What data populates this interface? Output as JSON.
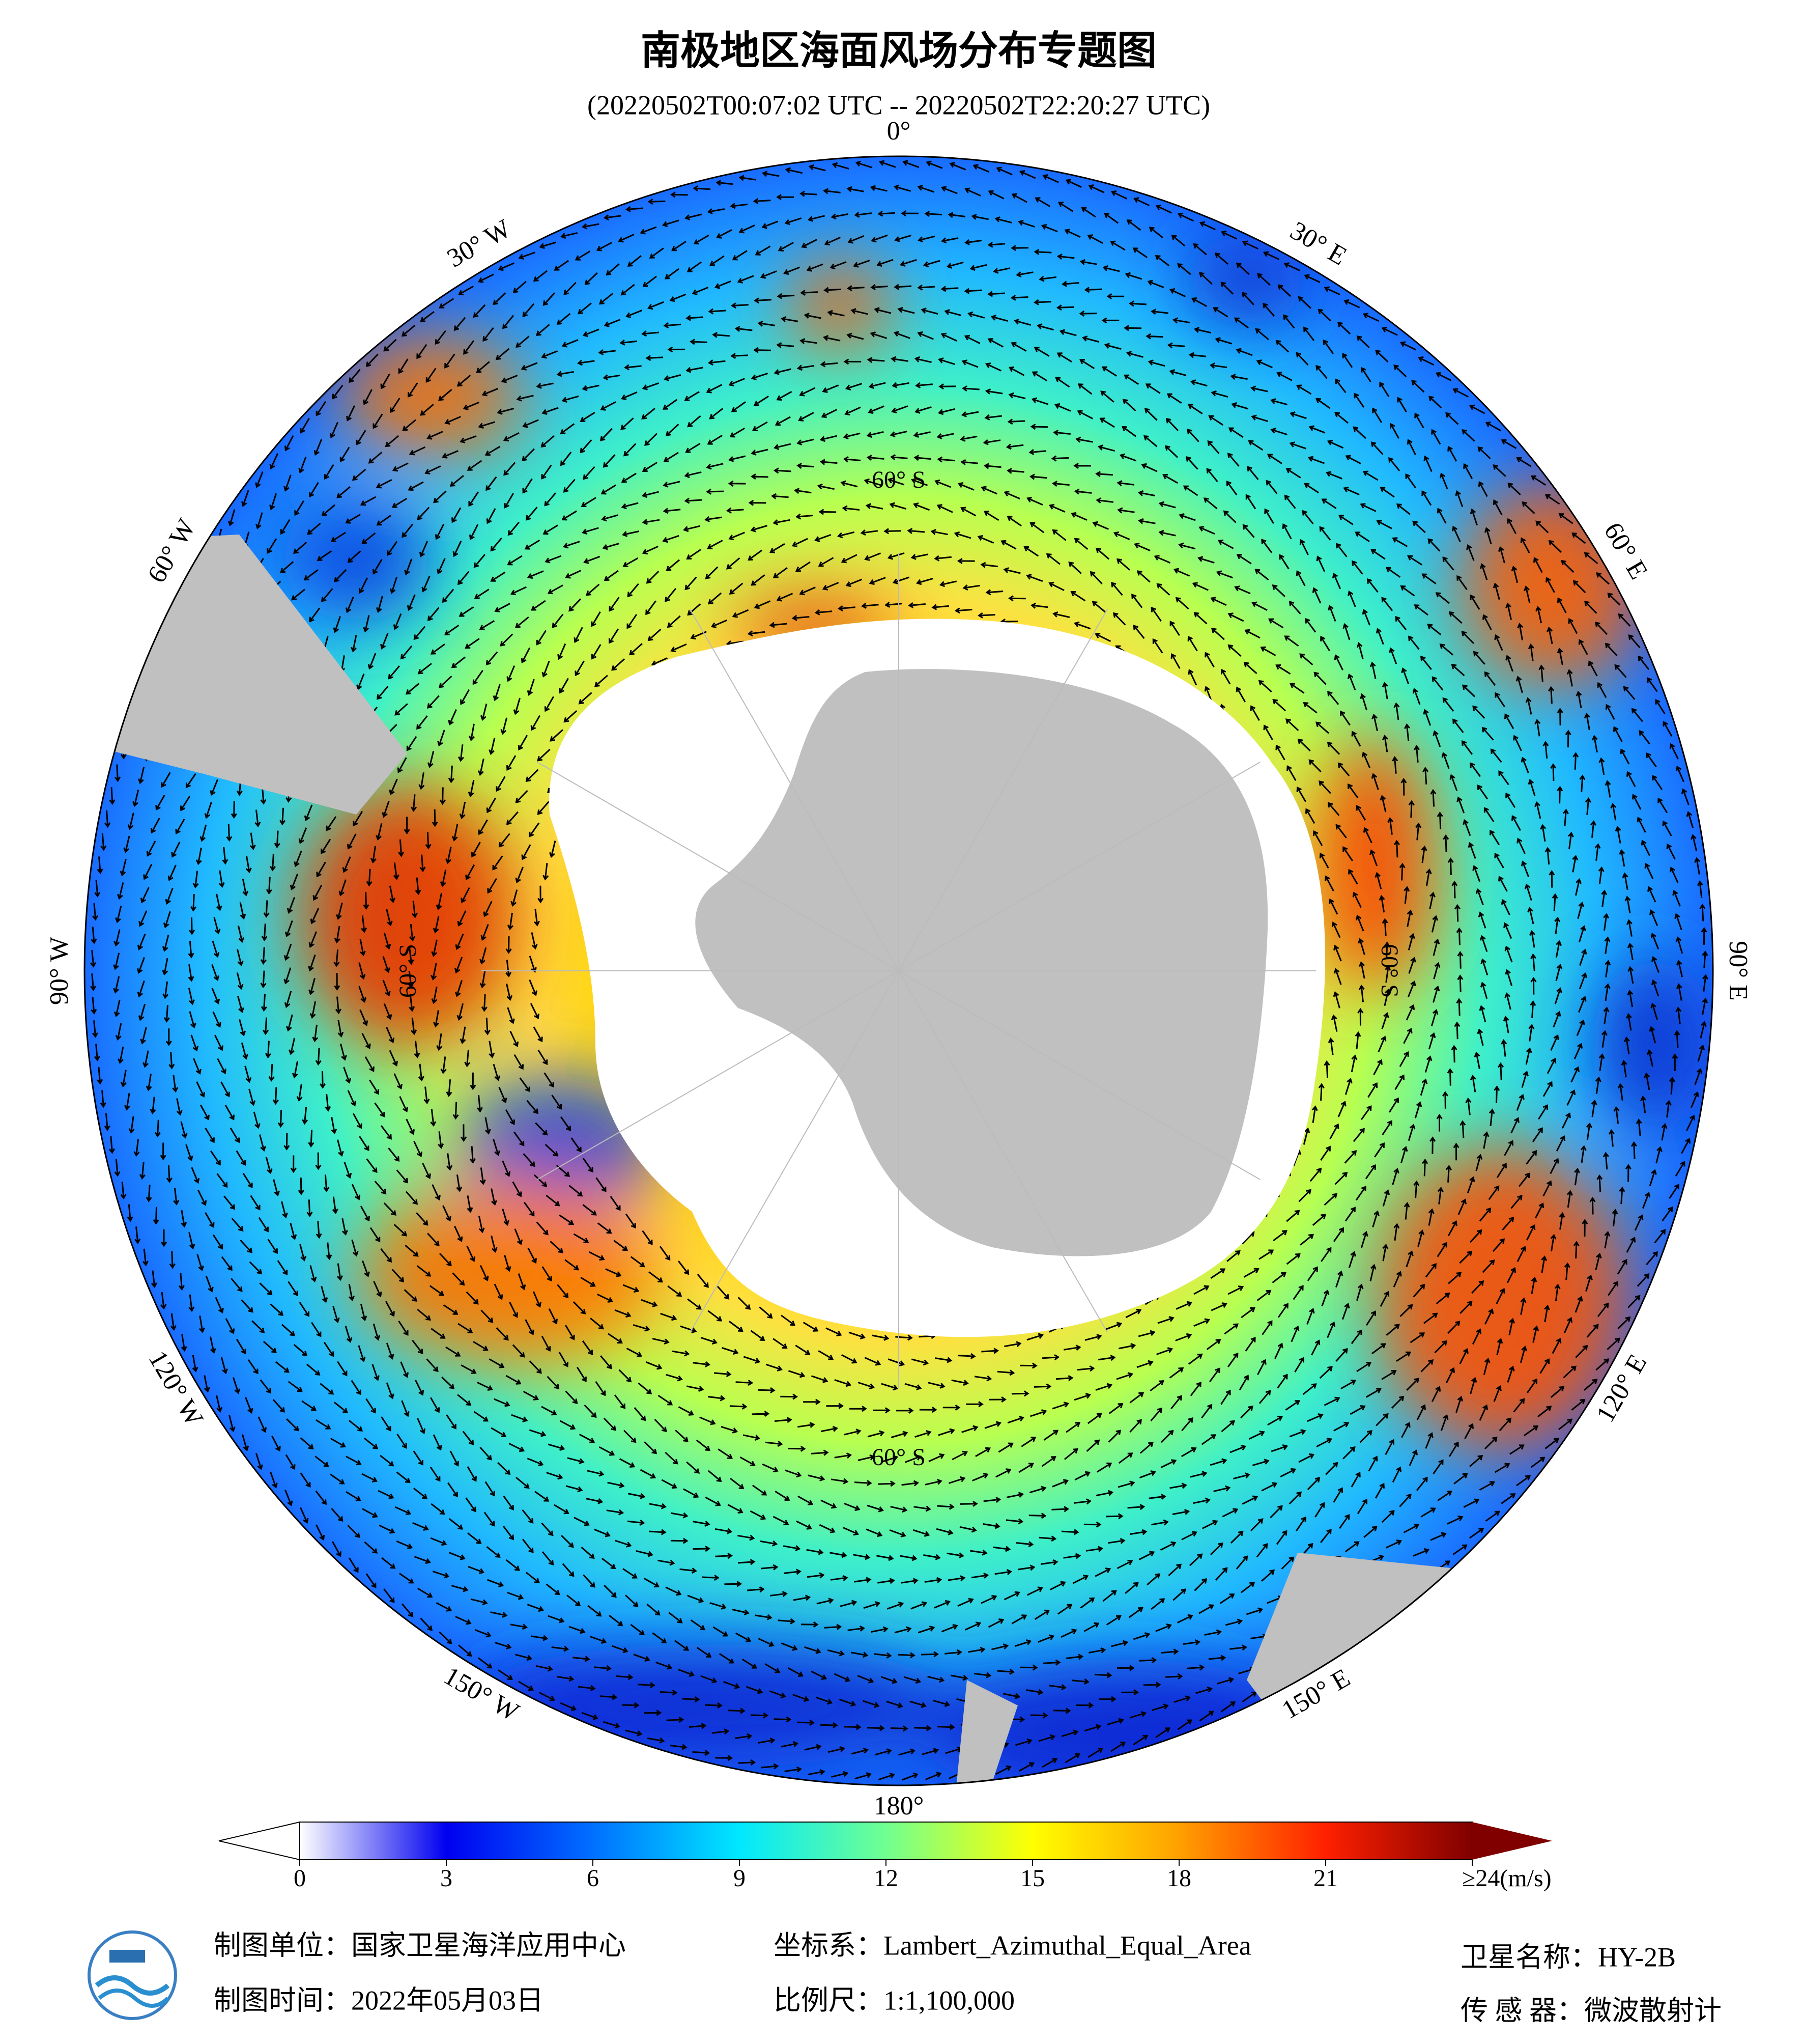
{
  "header": {
    "title": "南极地区海面风场分布专题图",
    "subtitle": "(20220502T00:07:02 UTC -- 20220502T22:20:27 UTC)"
  },
  "map": {
    "longitude_labels": [
      "0°",
      "30° E",
      "60° E",
      "90° E",
      "120° E",
      "150° E",
      "180°",
      "150° W",
      "120° W",
      "90° W",
      "60° W",
      "30° W"
    ],
    "latitude_labels": [
      "60° S",
      "60° S",
      "60° S",
      "60° S"
    ]
  },
  "colorbar": {
    "range": [
      0,
      24
    ],
    "ticks": [
      0,
      3,
      6,
      9,
      12,
      15,
      18,
      21,
      {
        "value": 24,
        "label": "≥24(m/s)"
      }
    ]
  },
  "footer": {
    "organization": "制图单位：国家卫星海洋应用中心",
    "date": "制图时间：2022年05月03日",
    "projection": "坐标系：Lambert_Azimuthal_Equal_Area",
    "scale": "比例尺：1:1,100,000",
    "satellite": "卫星名称：HY-2B",
    "sensor": "传 感 器：微波散射计"
  }
}
